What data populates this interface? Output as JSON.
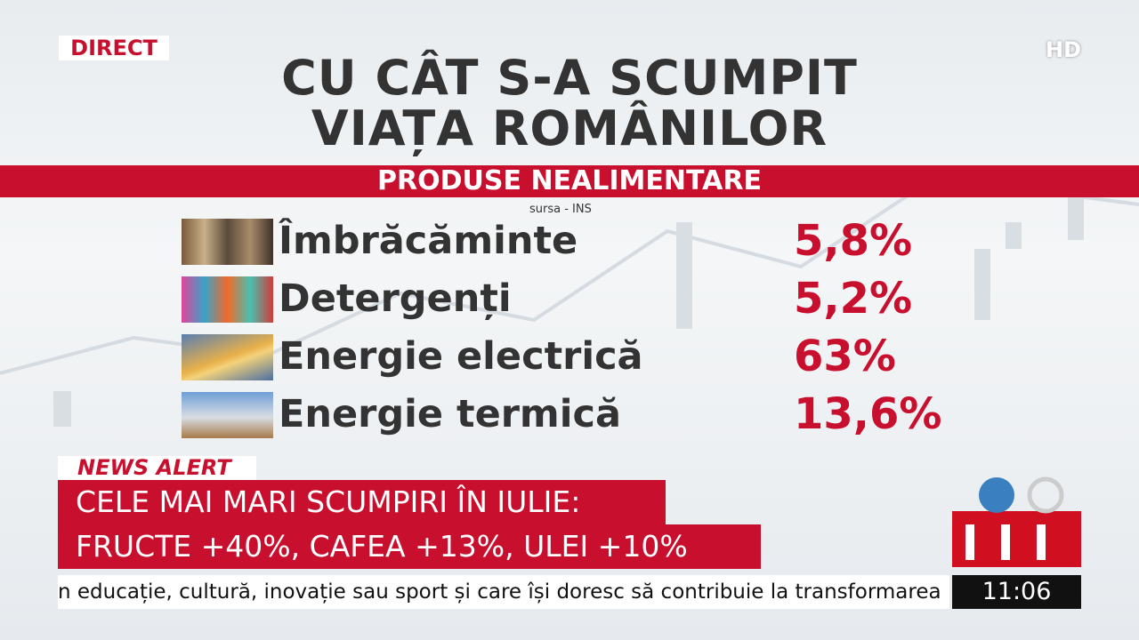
{
  "header": {
    "live": "DIRECT",
    "quality": "HD",
    "title_lines": [
      "CU CÂT S-A SCUMPIT",
      "VIAȚA ROMÂNILOR"
    ]
  },
  "section": {
    "title": "PRODUSE NEALIMENTARE",
    "source": "sursa - INS"
  },
  "table": {
    "rows": [
      [
        "Îmbrăcăminte",
        "5,8%"
      ],
      [
        "Detergenți",
        "5,2%"
      ],
      [
        "Energie electrică",
        "63%"
      ],
      [
        "Energie termică",
        "13,6%"
      ]
    ]
  },
  "news_alert": {
    "label": "NEWS ALERT",
    "lines": [
      "CELE MAI MARI SCUMPIRI ÎN IULIE:",
      "FRUCTE +40%, CAFEA +13%, ULEI +10%"
    ]
  },
  "ticker": {
    "text": "n educație, cultură, inovație sau sport și care își doresc să contribuie la transformarea",
    "clock": "11:06"
  }
}
